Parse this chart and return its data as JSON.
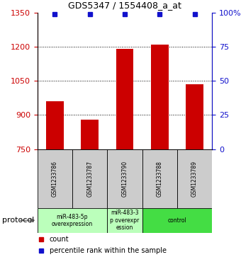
{
  "title": "GDS5347 / 1554408_a_at",
  "samples": [
    "GSM1233786",
    "GSM1233787",
    "GSM1233790",
    "GSM1233788",
    "GSM1233789"
  ],
  "counts": [
    960,
    880,
    1192,
    1210,
    1035
  ],
  "percentiles": [
    99,
    99,
    99,
    99,
    99
  ],
  "ylim_left": [
    750,
    1350
  ],
  "ylim_right": [
    0,
    100
  ],
  "yticks_left": [
    750,
    900,
    1050,
    1200,
    1350
  ],
  "yticks_right": [
    0,
    25,
    50,
    75,
    100
  ],
  "bar_color": "#cc0000",
  "dot_color": "#1111cc",
  "groups": [
    {
      "label": "miR-483-5p\noverexpression",
      "start": 0,
      "end": 2,
      "color": "#bbffbb"
    },
    {
      "label": "miR-483-3\np overexpr\nession",
      "start": 2,
      "end": 3,
      "color": "#bbffbb"
    },
    {
      "label": "control",
      "start": 3,
      "end": 5,
      "color": "#44dd44"
    }
  ],
  "protocol_label": "protocol",
  "legend_count_label": "count",
  "legend_percentile_label": "percentile rank within the sample",
  "tick_color_left": "#cc0000",
  "tick_color_right": "#1111cc",
  "sample_box_color": "#cccccc",
  "bar_width": 0.5
}
